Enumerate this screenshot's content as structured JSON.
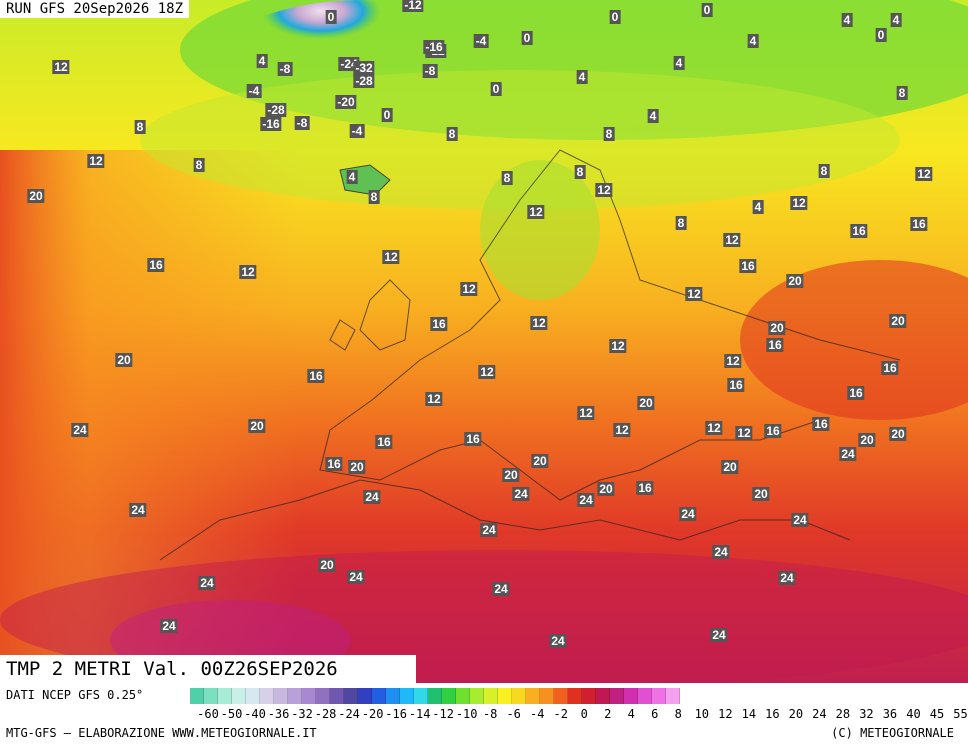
{
  "header": {
    "run_label": "RUN GFS 20Sep2026 18Z"
  },
  "map": {
    "title": "TMP 2 METRI Val. 00Z26SEP2026",
    "labels": [
      {
        "t": "0"
      },
      {
        "t": "0"
      },
      {
        "t": "0"
      },
      {
        "t": "0"
      },
      {
        "t": "0"
      },
      {
        "t": "0"
      },
      {
        "t": "0"
      },
      {
        "t": "-4"
      },
      {
        "t": "-4"
      },
      {
        "t": "-4"
      },
      {
        "t": "-8"
      },
      {
        "t": "-8"
      },
      {
        "t": "-8"
      },
      {
        "t": "-12"
      },
      {
        "t": "-12"
      },
      {
        "t": "-16"
      },
      {
        "t": "-16"
      },
      {
        "t": "-20"
      },
      {
        "t": "-24"
      },
      {
        "t": "-28"
      },
      {
        "t": "-28"
      },
      {
        "t": "-32"
      },
      {
        "t": "4"
      },
      {
        "t": "4"
      },
      {
        "t": "4"
      },
      {
        "t": "4"
      },
      {
        "t": "4"
      },
      {
        "t": "4"
      },
      {
        "t": "4"
      },
      {
        "t": "4"
      },
      {
        "t": "4"
      },
      {
        "t": "8"
      },
      {
        "t": "8"
      },
      {
        "t": "8"
      },
      {
        "t": "8"
      },
      {
        "t": "8"
      },
      {
        "t": "8"
      },
      {
        "t": "8"
      },
      {
        "t": "8"
      },
      {
        "t": "8"
      },
      {
        "t": "8"
      },
      {
        "t": "12"
      },
      {
        "t": "12"
      },
      {
        "t": "12"
      },
      {
        "t": "12"
      },
      {
        "t": "12"
      },
      {
        "t": "12"
      },
      {
        "t": "12"
      },
      {
        "t": "12"
      },
      {
        "t": "12"
      },
      {
        "t": "12"
      },
      {
        "t": "12"
      },
      {
        "t": "12"
      },
      {
        "t": "12"
      },
      {
        "t": "12"
      },
      {
        "t": "12"
      },
      {
        "t": "12"
      },
      {
        "t": "12"
      },
      {
        "t": "12"
      },
      {
        "t": "12"
      },
      {
        "t": "12"
      },
      {
        "t": "16"
      },
      {
        "t": "16"
      },
      {
        "t": "16"
      },
      {
        "t": "16"
      },
      {
        "t": "16"
      },
      {
        "t": "16"
      },
      {
        "t": "16"
      },
      {
        "t": "16"
      },
      {
        "t": "16"
      },
      {
        "t": "16"
      },
      {
        "t": "16"
      },
      {
        "t": "16"
      },
      {
        "t": "16"
      },
      {
        "t": "16"
      },
      {
        "t": "16"
      },
      {
        "t": "16"
      },
      {
        "t": "20"
      },
      {
        "t": "20"
      },
      {
        "t": "20"
      },
      {
        "t": "20"
      },
      {
        "t": "20"
      },
      {
        "t": "20"
      },
      {
        "t": "20"
      },
      {
        "t": "20"
      },
      {
        "t": "20"
      },
      {
        "t": "20"
      },
      {
        "t": "20"
      },
      {
        "t": "20"
      },
      {
        "t": "20"
      },
      {
        "t": "20"
      },
      {
        "t": "20"
      },
      {
        "t": "20"
      },
      {
        "t": "24"
      },
      {
        "t": "24"
      },
      {
        "t": "24"
      },
      {
        "t": "24"
      },
      {
        "t": "24"
      },
      {
        "t": "24"
      },
      {
        "t": "24"
      },
      {
        "t": "24"
      },
      {
        "t": "24"
      },
      {
        "t": "24"
      },
      {
        "t": "24"
      },
      {
        "t": "24"
      },
      {
        "t": "24"
      },
      {
        "t": "24"
      },
      {
        "t": "24"
      },
      {
        "t": "24"
      },
      {
        "t": "24"
      }
    ]
  },
  "legend": {
    "source": "DATI NCEP GFS 0.25°",
    "ticks": [
      "-60",
      "-50",
      "-40",
      "-36",
      "-32",
      "-28",
      "-24",
      "-20",
      "-16",
      "-14",
      "-12",
      "-10",
      "-8",
      "-6",
      "-4",
      "-2",
      "0",
      "2",
      "4",
      "6",
      "8",
      "10",
      "12",
      "14",
      "16",
      "20",
      "24",
      "28",
      "32",
      "36",
      "40",
      "45",
      "55"
    ],
    "colors": [
      "#4fd0a8",
      "#7ce0c0",
      "#a8ecd8",
      "#c8f0e8",
      "#d8e8f0",
      "#d8d0e8",
      "#c8b8e0",
      "#b8a0d8",
      "#a888d0",
      "#9070c0",
      "#7058b0",
      "#5048a0",
      "#3040c0",
      "#2060e0",
      "#2090f0",
      "#20b8f8",
      "#30d8e8",
      "#20c070",
      "#30d040",
      "#70e030",
      "#a8ec30",
      "#d8f028",
      "#f8f020",
      "#f8d820",
      "#f8b020",
      "#f89020",
      "#f06020",
      "#e03020",
      "#d02030",
      "#c01850",
      "#c02080",
      "#d030b0",
      "#e050d0",
      "#f070e8",
      "#f8a0f0"
    ]
  },
  "credits": {
    "left": "MTG-GFS – ELABORAZIONE WWW.METEOGIORNALE.IT",
    "right": "(C) METEOGIORNALE"
  }
}
